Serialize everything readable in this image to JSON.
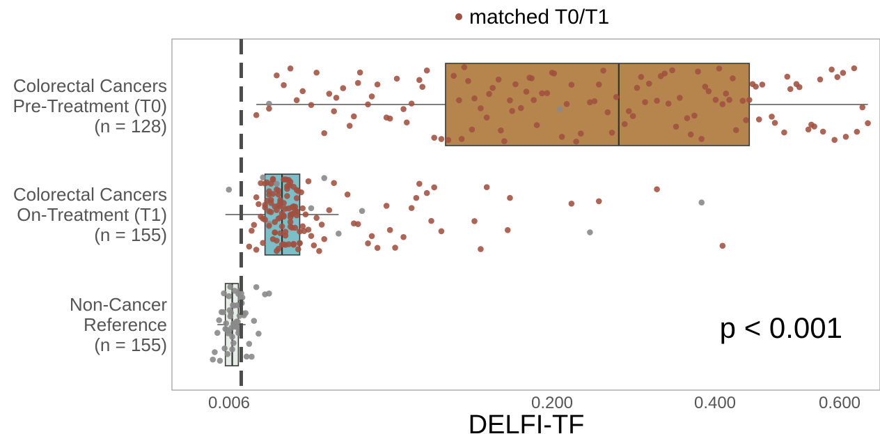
{
  "chart_data": {
    "type": "box",
    "xlabel": "DELFI-TF",
    "x_ticks": [
      "0.006",
      "0.200",
      "0.400",
      "0.600"
    ],
    "x_scale": "sqrt",
    "xlim": [
      0,
      0.66
    ],
    "threshold": 0.006,
    "legend": {
      "label": "matched T0/T1",
      "color": "#a0503f",
      "position": "top"
    },
    "annotation": "p < 0.001",
    "grid": false,
    "groups": [
      {
        "label_lines": [
          "Colorectal Cancers",
          "Pre-Treatment (T0)",
          "(n = 128)"
        ],
        "n": 128,
        "box": {
          "min": 0.009,
          "q1": 0.098,
          "median": 0.263,
          "q3": 0.44,
          "max": 0.64
        },
        "box_color": "#b5854d",
        "points_matched": [
          0.014,
          0.016,
          0.02,
          0.025,
          0.027,
          0.03,
          0.034,
          0.035,
          0.038,
          0.041,
          0.043,
          0.046,
          0.05,
          0.055,
          0.06,
          0.066,
          0.07,
          0.075,
          0.08,
          0.085,
          0.09,
          0.1,
          0.104,
          0.108,
          0.11,
          0.115,
          0.12,
          0.125,
          0.13,
          0.135,
          0.14,
          0.145,
          0.15,
          0.155,
          0.16,
          0.165,
          0.17,
          0.175,
          0.18,
          0.185,
          0.19,
          0.2,
          0.21,
          0.22,
          0.23,
          0.24,
          0.25,
          0.26,
          0.27,
          0.28,
          0.29,
          0.3,
          0.31,
          0.32,
          0.33,
          0.34,
          0.35,
          0.36,
          0.37,
          0.38,
          0.39,
          0.4,
          0.41,
          0.42,
          0.43,
          0.44,
          0.45,
          0.46,
          0.48,
          0.5,
          0.52,
          0.54,
          0.56,
          0.58,
          0.6,
          0.62,
          0.64,
          0.009,
          0.012,
          0.018,
          0.022,
          0.032,
          0.045,
          0.052,
          0.062,
          0.072,
          0.082,
          0.095,
          0.112,
          0.132,
          0.152,
          0.172,
          0.192,
          0.215,
          0.235,
          0.255,
          0.275,
          0.295,
          0.315,
          0.335,
          0.355,
          0.375,
          0.395,
          0.415,
          0.435,
          0.455,
          0.475,
          0.495,
          0.515,
          0.535,
          0.555,
          0.575,
          0.595,
          0.615,
          0.63,
          0.118,
          0.142,
          0.168,
          0.205,
          0.245,
          0.285,
          0.325,
          0.365,
          0.405,
          0.445,
          0.505,
          0.545,
          0.585
        ],
        "points_other": [
          0.012,
          0.198
        ]
      },
      {
        "label_lines": [
          "Colorectal Cancers",
          "On-Treatment (T1)",
          "(n = 155)"
        ],
        "n": 155,
        "box": {
          "min": 0.0035,
          "q1": 0.011,
          "median": 0.0155,
          "q3": 0.021,
          "max": 0.036
        },
        "box_color": "#7cbfc9",
        "points_matched": [
          0.0075,
          0.008,
          0.0085,
          0.009,
          0.0095,
          0.01,
          0.0105,
          0.011,
          0.0115,
          0.012,
          0.0125,
          0.013,
          0.0135,
          0.014,
          0.0145,
          0.015,
          0.0155,
          0.016,
          0.0165,
          0.017,
          0.0175,
          0.018,
          0.0185,
          0.019,
          0.0195,
          0.02,
          0.0205,
          0.021,
          0.022,
          0.023,
          0.024,
          0.025,
          0.026,
          0.027,
          0.028,
          0.029,
          0.03,
          0.032,
          0.034,
          0.009,
          0.0105,
          0.012,
          0.0135,
          0.015,
          0.0165,
          0.018,
          0.0195,
          0.021,
          0.0225,
          0.024,
          0.011,
          0.0125,
          0.014,
          0.0155,
          0.017,
          0.0185,
          0.02,
          0.0215,
          0.01,
          0.0115,
          0.013,
          0.0145,
          0.016,
          0.0175,
          0.019,
          0.0205,
          0.022,
          0.012,
          0.0135,
          0.015,
          0.0165,
          0.018,
          0.0195,
          0.013,
          0.0145,
          0.016,
          0.0175,
          0.019,
          0.011,
          0.0125,
          0.014,
          0.0155,
          0.017,
          0.0185,
          0.02,
          0.015,
          0.0165,
          0.018,
          0.0135,
          0.012,
          0.0145,
          0.016,
          0.0175,
          0.011,
          0.013,
          0.015,
          0.017,
          0.019,
          0.021,
          0.014,
          0.016,
          0.018,
          0.02,
          0.0125,
          0.0145,
          0.0165,
          0.0185,
          0.04,
          0.045,
          0.05,
          0.055,
          0.06,
          0.065,
          0.07,
          0.075,
          0.08,
          0.085,
          0.09,
          0.095,
          0.12,
          0.125,
          0.15,
          0.21,
          0.24,
          0.31,
          0.4,
          0.043,
          0.052,
          0.062,
          0.078,
          0.088,
          0.13,
          0.148
        ],
        "points_other": [
          0.004,
          0.0105,
          0.012,
          0.014,
          0.016,
          0.018,
          0.02,
          0.025,
          0.03,
          0.036,
          0.047,
          0.23,
          0.37
        ]
      },
      {
        "label_lines": [
          "Non-Cancer",
          "Reference",
          "(n = 155)"
        ],
        "n": 155,
        "box": {
          "min": 0.0025,
          "q1": 0.0035,
          "median": 0.0045,
          "q3": 0.0055,
          "max": 0.0068
        },
        "box_color": "#e6ece6",
        "points_matched": [],
        "points_other": [
          0.002,
          0.0025,
          0.003,
          0.0032,
          0.0035,
          0.0037,
          0.004,
          0.0042,
          0.0045,
          0.0047,
          0.005,
          0.0052,
          0.0055,
          0.0057,
          0.006,
          0.0062,
          0.0065,
          0.007,
          0.0075,
          0.008,
          0.0085,
          0.0022,
          0.0027,
          0.0033,
          0.0038,
          0.0043,
          0.0048,
          0.0053,
          0.0058,
          0.0063,
          0.0068,
          0.0028,
          0.0034,
          0.0039,
          0.0044,
          0.0049,
          0.0054,
          0.0059,
          0.0036,
          0.0041,
          0.0046,
          0.0051,
          0.0056,
          0.0061,
          0.004,
          0.0045,
          0.005,
          0.0055,
          0.0042,
          0.0047,
          0.0052,
          0.009,
          0.0095,
          0.011,
          0.012
        ]
      }
    ]
  }
}
